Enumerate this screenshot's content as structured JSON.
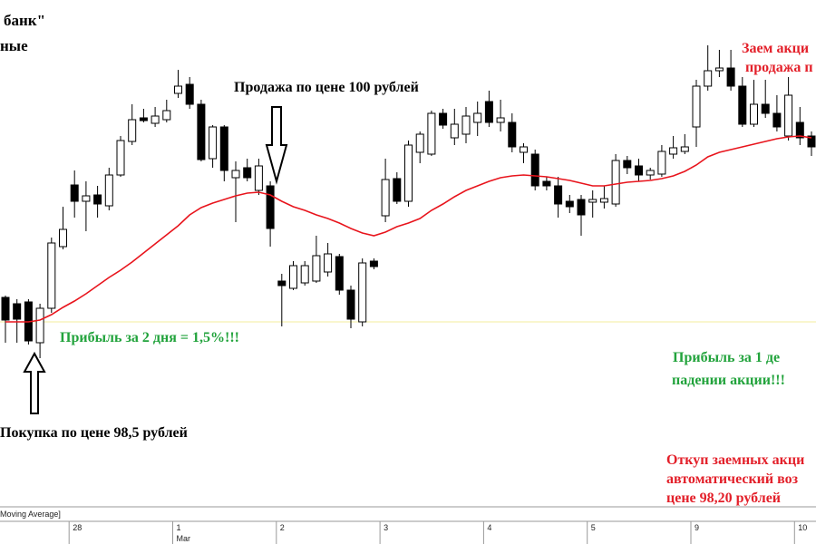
{
  "chart_data": {
    "type": "candlestick",
    "title_lines": [
      "банк\"",
      "ные"
    ],
    "ylim": [
      96.5,
      102
    ],
    "categories": [
      null,
      null,
      null,
      null,
      null,
      null,
      "28",
      null,
      null,
      null,
      null,
      null,
      null,
      null,
      null,
      "1",
      null,
      null,
      null,
      null,
      null,
      null,
      null,
      null,
      "2",
      null,
      null,
      null,
      null,
      null,
      null,
      null,
      null,
      "3",
      null,
      null,
      null,
      null,
      null,
      null,
      null,
      null,
      "4",
      null,
      null,
      null,
      null,
      null,
      null,
      null,
      null,
      "5",
      null,
      null,
      null,
      null,
      null,
      null,
      null,
      null,
      "9",
      null,
      null,
      null,
      null,
      null,
      null,
      null,
      null,
      "10",
      null
    ],
    "category_months": [
      null,
      null,
      null,
      null,
      null,
      null,
      null,
      null,
      null,
      null,
      null,
      null,
      null,
      null,
      null,
      "Mar",
      null,
      null,
      null,
      null,
      null,
      null,
      null,
      null,
      null,
      null,
      null,
      null,
      null,
      null,
      null,
      null,
      null,
      null,
      null,
      null,
      null,
      null,
      null,
      null,
      null,
      null,
      null,
      null,
      null,
      null,
      null,
      null,
      null,
      null,
      null,
      null,
      null,
      null,
      null,
      null,
      null,
      null,
      null,
      null,
      null,
      null,
      null,
      null,
      null,
      null,
      null,
      null,
      null,
      null,
      null
    ],
    "open": [
      98.77,
      98.7,
      98.72,
      98.27,
      98.65,
      99.33,
      100.01,
      99.83,
      99.9,
      99.78,
      100.12,
      100.49,
      100.75,
      100.69,
      100.73,
      101.02,
      101.12,
      100.9,
      100.3,
      100.65,
      100.09,
      100.2,
      99.95,
      100.0,
      98.95,
      98.87,
      98.93,
      98.95,
      99.05,
      99.22,
      98.85,
      98.5,
      99.17,
      99.67,
      100.08,
      99.83,
      100.37,
      100.35,
      100.8,
      100.53,
      100.57,
      100.7,
      100.93,
      100.7,
      100.7,
      100.37,
      100.35,
      100.05,
      100.0,
      99.83,
      99.85,
      99.82,
      99.82,
      99.8,
      100.28,
      100.22,
      100.12,
      100.13,
      100.35,
      100.38,
      100.65,
      101.1,
      101.27,
      101.3,
      101.1,
      100.68,
      100.9,
      100.8,
      100.55,
      100.7,
      100.55
    ],
    "high": [
      98.79,
      98.75,
      98.75,
      98.7,
      99.43,
      99.77,
      100.17,
      100.05,
      100.0,
      100.2,
      100.55,
      100.9,
      100.85,
      100.87,
      100.95,
      101.28,
      101.2,
      100.95,
      100.67,
      100.67,
      100.27,
      100.3,
      100.3,
      100.05,
      99.03,
      99.17,
      99.17,
      99.45,
      99.37,
      99.25,
      98.9,
      99.2,
      99.2,
      100.3,
      100.15,
      100.5,
      100.6,
      100.83,
      100.85,
      100.85,
      100.87,
      100.93,
      101.05,
      100.95,
      100.8,
      100.47,
      100.4,
      100.1,
      100.1,
      99.9,
      99.9,
      99.95,
      100.0,
      100.35,
      100.33,
      100.3,
      100.2,
      100.45,
      100.55,
      100.57,
      101.17,
      101.55,
      101.5,
      101.5,
      101.2,
      101.17,
      101.17,
      101.0,
      101.2,
      100.87,
      100.6
    ],
    "low": [
      98.27,
      98.27,
      98.25,
      98.1,
      98.6,
      99.3,
      99.65,
      99.5,
      99.65,
      99.73,
      100.1,
      100.45,
      100.7,
      100.65,
      100.7,
      100.97,
      100.85,
      100.27,
      100.2,
      100.05,
      99.6,
      100.05,
      99.9,
      99.33,
      98.45,
      98.85,
      98.9,
      98.93,
      99.0,
      98.8,
      98.43,
      98.45,
      99.08,
      99.6,
      99.8,
      99.77,
      100.25,
      100.33,
      100.63,
      100.45,
      100.47,
      100.55,
      100.65,
      100.6,
      100.37,
      100.25,
      99.95,
      99.95,
      99.65,
      99.7,
      99.45,
      99.65,
      99.75,
      99.77,
      100.13,
      100.05,
      100.07,
      100.1,
      100.3,
      100.35,
      100.43,
      101.05,
      101.2,
      101.05,
      100.65,
      100.65,
      100.75,
      100.6,
      100.5,
      100.45,
      100.33
    ],
    "close": [
      98.52,
      98.53,
      98.29,
      98.65,
      99.37,
      99.52,
      99.83,
      99.89,
      99.8,
      100.12,
      100.5,
      100.73,
      100.72,
      100.77,
      100.83,
      101.1,
      100.9,
      100.29,
      100.65,
      100.17,
      100.17,
      100.09,
      100.22,
      99.53,
      98.9,
      99.12,
      99.12,
      99.23,
      99.25,
      98.85,
      98.53,
      99.15,
      99.11,
      100.07,
      99.83,
      100.45,
      100.57,
      100.8,
      100.67,
      100.68,
      100.77,
      100.8,
      100.7,
      100.75,
      100.43,
      100.43,
      100.0,
      100.0,
      99.8,
      99.77,
      99.68,
      99.85,
      99.86,
      100.28,
      100.2,
      100.12,
      100.17,
      100.38,
      100.42,
      100.43,
      101.1,
      101.27,
      101.3,
      101.1,
      100.68,
      100.9,
      100.8,
      100.65,
      101.0,
      100.53,
      100.43
    ],
    "up_color": "#ffffff",
    "down_color": "#000000",
    "moving_average": {
      "color": "#e8141c",
      "values": [
        98.5,
        98.5,
        98.5,
        98.52,
        98.58,
        98.66,
        98.73,
        98.81,
        98.9,
        98.99,
        99.07,
        99.16,
        99.26,
        99.36,
        99.46,
        99.56,
        99.68,
        99.76,
        99.81,
        99.85,
        99.89,
        99.92,
        99.93,
        99.9,
        99.83,
        99.77,
        99.73,
        99.68,
        99.64,
        99.59,
        99.53,
        99.48,
        99.45,
        99.49,
        99.55,
        99.59,
        99.64,
        99.73,
        99.8,
        99.88,
        99.95,
        100.0,
        100.05,
        100.09,
        100.11,
        100.12,
        100.11,
        100.1,
        100.08,
        100.06,
        100.03,
        100.0,
        100.0,
        100.02,
        100.04,
        100.05,
        100.06,
        100.08,
        100.11,
        100.16,
        100.23,
        100.32,
        100.37,
        100.4,
        100.43,
        100.46,
        100.49,
        100.52,
        100.54,
        100.55,
        100.53
      ]
    },
    "level": {
      "value": 98.5,
      "color": "#f3ec9c"
    },
    "indicator_label": "Moving Average]",
    "annotations": [
      {
        "color": "#000000",
        "lines": [
          "Продажа по цене 100 рублей"
        ]
      },
      {
        "color": "#22a33c",
        "lines": [
          "Прибыль за 2 дня = 1,5%!!!"
        ]
      },
      {
        "color": "#000000",
        "lines": [
          "Покупка по цене 98,5 рублей"
        ]
      },
      {
        "color": "#e3202a",
        "lines": [
          "Заем акци",
          "продажа п"
        ]
      },
      {
        "color": "#22a33c",
        "lines": [
          "Прибыль за 1 де",
          "падении акции!!!"
        ]
      },
      {
        "color": "#e3202a",
        "lines": [
          "Откуп заемных акци",
          "автоматический воз",
          "цене 98,20 рублей"
        ]
      }
    ]
  }
}
